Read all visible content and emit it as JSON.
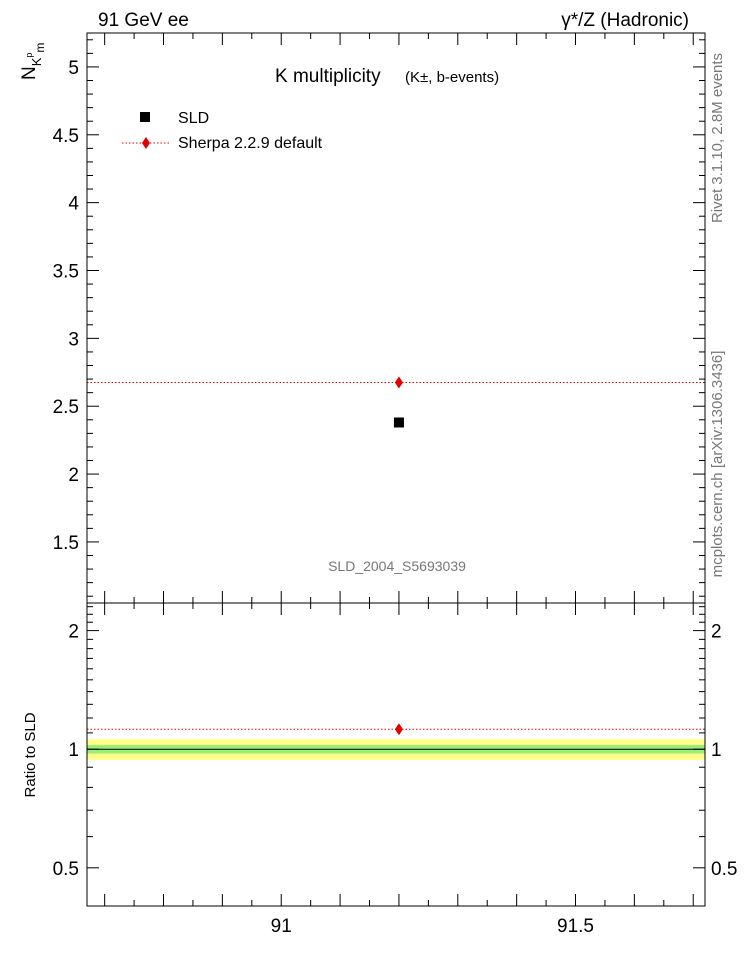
{
  "header": {
    "left": "91 GeV ee",
    "right": "γ*/Z (Hadronic)"
  },
  "side_labels": {
    "rivet": "Rivet 3.1.10,  2.8M events",
    "mcplots": "mcplots.cern.ch [arXiv:1306.3436]"
  },
  "watermark": "SLD_2004_S5693039",
  "chart_data": [
    {
      "type": "scatter",
      "title": "K multiplicity",
      "title_note": "(K±, b-events)",
      "ylabel": "N",
      "ylabel_sub": "K",
      "ylabel_subsup": "p",
      "ylabel_subsub": "m",
      "xlim": [
        90.67,
        91.72
      ],
      "ylim": [
        1.05,
        5.25
      ],
      "yticks": [
        "1.5",
        "2",
        "2.5",
        "3",
        "3.5",
        "4",
        "4.5",
        "5"
      ],
      "legend_position": "top-left",
      "series": [
        {
          "name": "SLD",
          "marker": "square",
          "color": "#000000",
          "x": [
            91.2
          ],
          "y": [
            2.38
          ]
        },
        {
          "name": "Sherpa 2.2.9 default",
          "marker": "diamond",
          "line": "dotted",
          "color": "#e00000",
          "x": [
            91.2
          ],
          "y": [
            2.675
          ]
        }
      ]
    },
    {
      "type": "scatter",
      "ylabel": "Ratio to SLD",
      "xlim": [
        90.67,
        91.72
      ],
      "ylim": [
        0.4,
        2.35
      ],
      "yticks": [
        "0.5",
        "1",
        "2"
      ],
      "xticks": [
        "91",
        "91.5"
      ],
      "y_scale": "log",
      "bands": [
        {
          "color": "#ffff88",
          "low": 0.94,
          "high": 1.06
        },
        {
          "color": "#99ee77",
          "low": 0.975,
          "high": 1.025
        }
      ],
      "series": [
        {
          "name": "Sherpa 2.2.9 default",
          "marker": "diamond",
          "line": "dotted",
          "color": "#e00000",
          "x": [
            91.2
          ],
          "y": [
            1.124
          ]
        }
      ]
    }
  ]
}
